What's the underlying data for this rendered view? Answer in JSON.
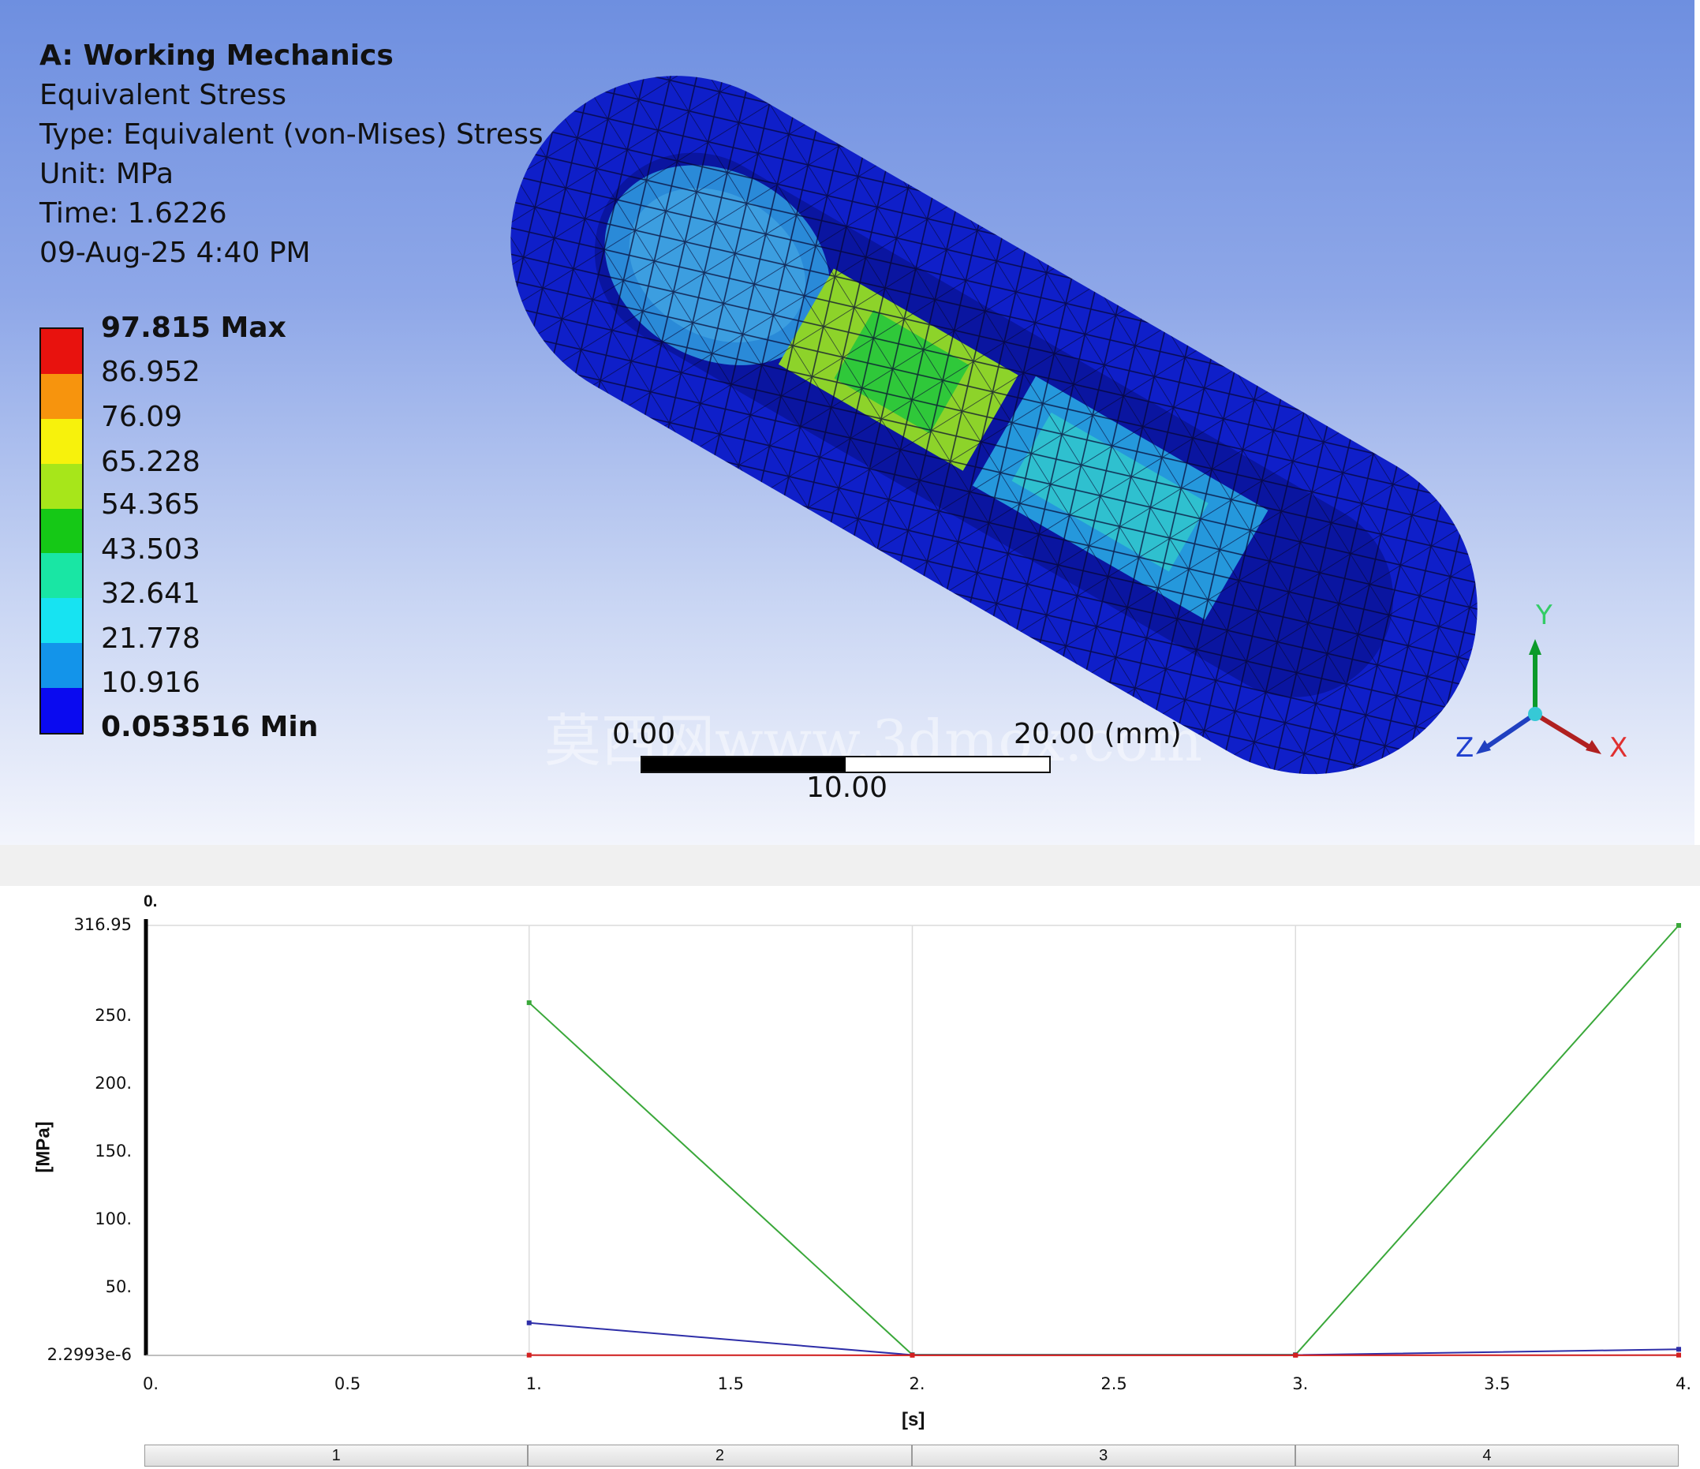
{
  "viewport": {
    "title": "A: Working Mechanics",
    "result_name": "Equivalent Stress",
    "type_line": "Type: Equivalent (von-Mises) Stress",
    "unit_line": "Unit: MPa",
    "time_line": "Time: 1.6226",
    "date_line": "09-Aug-25 4:40 PM",
    "legend": {
      "max_label": "97.815 Max",
      "values": [
        "86.952",
        "76.09",
        "65.228",
        "54.365",
        "43.503",
        "32.641",
        "21.778",
        "10.916"
      ],
      "min_label": "0.053516 Min",
      "colors": [
        "#e8120e",
        "#f7940d",
        "#f7f20c",
        "#a7e61a",
        "#15c816",
        "#19e6a4",
        "#17e3f2",
        "#1394ea",
        "#0a0af0"
      ]
    },
    "scale": {
      "left_label": "0.00",
      "right_label": "20.00 (mm)",
      "mid_label": "10.00"
    },
    "triad": {
      "x": "X",
      "y": "Y",
      "z": "Z"
    },
    "watermark": "莫西网www.3dmox.com"
  },
  "chart_data": {
    "type": "line",
    "xlabel": "[s]",
    "ylabel": "[MPa]",
    "top_label": "0.",
    "xlim": [
      0,
      4
    ],
    "ylim": [
      2.2993e-06,
      316.95
    ],
    "x_ticks": [
      "0.",
      "0.5",
      "1.",
      "1.5",
      "2.",
      "2.5",
      "3.",
      "3.5",
      "4."
    ],
    "y_ticks": [
      {
        "label": "316.95",
        "value": 316.95
      },
      {
        "label": "250.",
        "value": 250
      },
      {
        "label": "200.",
        "value": 200
      },
      {
        "label": "150.",
        "value": 150
      },
      {
        "label": "100.",
        "value": 100
      },
      {
        "label": "50.",
        "value": 50
      },
      {
        "label": "2.2993e-6",
        "value": 2.2993e-06
      }
    ],
    "series": [
      {
        "color": "#3aa83a",
        "x": [
          1,
          2,
          3,
          4
        ],
        "y": [
          260,
          0.5,
          0.5,
          316.95
        ]
      },
      {
        "color": "#2e2ea8",
        "x": [
          1,
          2,
          3,
          4
        ],
        "y": [
          24,
          0.3,
          0.3,
          4.5
        ]
      },
      {
        "color": "#d42020",
        "x": [
          1,
          2,
          3,
          4
        ],
        "y": [
          0.2,
          0.1,
          0.1,
          0.2
        ]
      }
    ],
    "steps": [
      "1",
      "2",
      "3",
      "4"
    ]
  }
}
